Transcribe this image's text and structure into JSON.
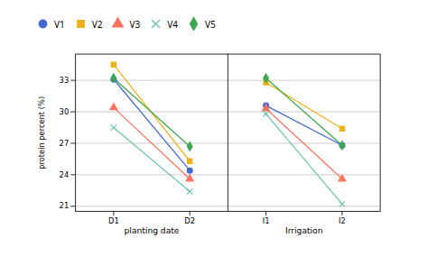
{
  "chart_data": {
    "type": "line",
    "ylabel": "protein percent (%)",
    "categories": [
      "D1",
      "D2",
      "I1",
      "I2"
    ],
    "groups": [
      {
        "label": "planting date",
        "categories": [
          "D1",
          "D2"
        ]
      },
      {
        "label": "Irrigation",
        "categories": [
          "I1",
          "I2"
        ]
      }
    ],
    "series": [
      {
        "name": "V1",
        "marker": "circle",
        "values": [
          33.1,
          24.4,
          30.6,
          26.8
        ]
      },
      {
        "name": "V2",
        "marker": "square",
        "values": [
          34.5,
          25.3,
          32.8,
          28.4
        ]
      },
      {
        "name": "V3",
        "marker": "triangle",
        "values": [
          30.4,
          23.6,
          30.3,
          23.6
        ]
      },
      {
        "name": "V4",
        "marker": "x",
        "values": [
          28.5,
          22.4,
          29.8,
          21.2
        ]
      },
      {
        "name": "V5",
        "marker": "diamond",
        "values": [
          33.2,
          26.7,
          33.2,
          26.8
        ]
      }
    ],
    "ylim": [
      20.5,
      35.5
    ],
    "yticks": [
      21,
      24,
      27,
      30,
      33
    ],
    "grid": true,
    "legend": "top"
  }
}
